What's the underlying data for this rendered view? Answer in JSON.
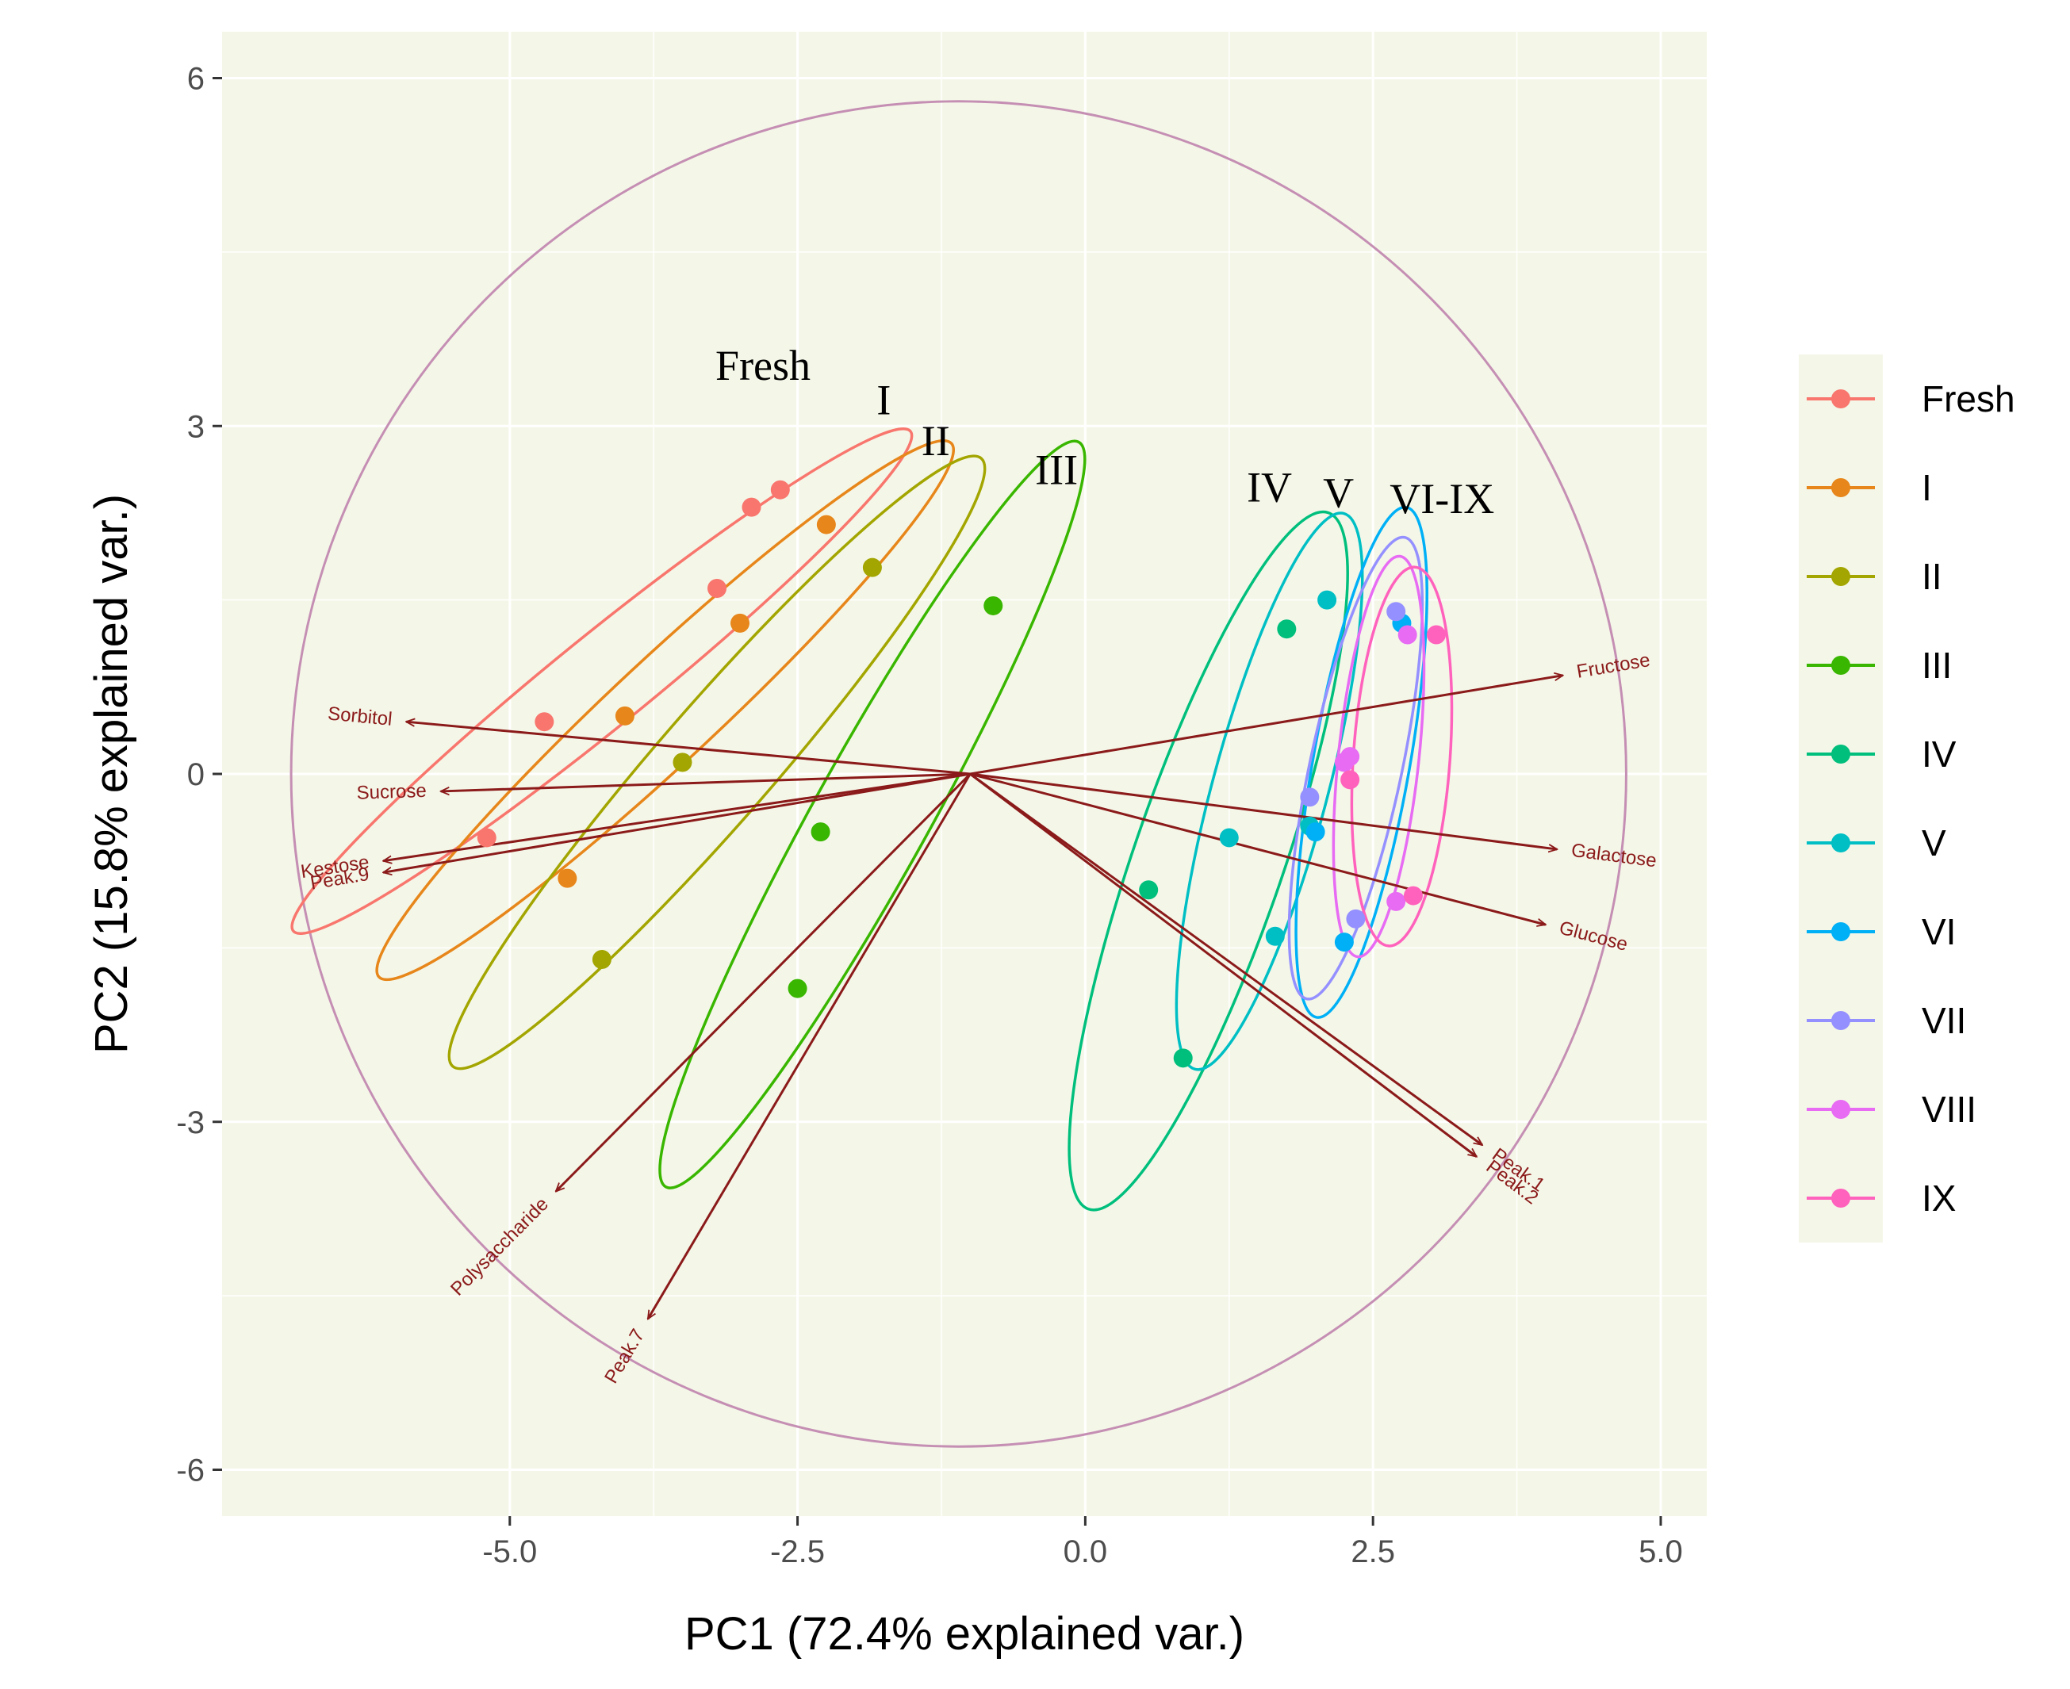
{
  "chart_data": {
    "type": "scatter",
    "title": "",
    "xlabel": "PC1 (72.4% explained var.)",
    "ylabel": "PC2 (15.8% explained var.)",
    "xlim": [
      -7.5,
      5.4
    ],
    "ylim": [
      -6.4,
      6.4
    ],
    "xticks": [
      -5.0,
      -2.5,
      0.0,
      2.5,
      5.0
    ],
    "xtick_labels": [
      "-5.0",
      "-2.5",
      "0.0",
      "2.5",
      "5.0"
    ],
    "yticks": [
      -6,
      -3,
      0,
      3,
      6
    ],
    "ytick_labels": [
      "-6",
      "-3",
      "0",
      "3",
      "6"
    ],
    "grid": true,
    "panel_color": "#f4f7e8",
    "legend_position": "right",
    "origin": [
      -1.0,
      0.0
    ],
    "circle": {
      "center": [
        -1.1,
        0.0
      ],
      "radius": 5.8,
      "color": "#c58fb4"
    },
    "series": [
      {
        "name": "Fresh",
        "color": "#f8766d",
        "points": [
          [
            -2.65,
            2.45
          ],
          [
            -4.7,
            0.45
          ],
          [
            -5.2,
            -0.55
          ],
          [
            -3.2,
            1.6
          ],
          [
            -2.9,
            2.3
          ]
        ],
        "ellipse": {
          "cx": -4.2,
          "cy": 0.8,
          "rx": 3.45,
          "ry": 0.4,
          "angle": 39
        }
      },
      {
        "name": "I",
        "color": "#e7861a",
        "points": [
          [
            -2.25,
            2.15
          ],
          [
            -4.0,
            0.5
          ],
          [
            -4.5,
            -0.9
          ],
          [
            -3.0,
            1.3
          ]
        ],
        "ellipse": {
          "cx": -3.65,
          "cy": 0.55,
          "rx": 3.4,
          "ry": 0.45,
          "angle": 43
        }
      },
      {
        "name": "II",
        "color": "#a3a500",
        "points": [
          [
            -1.85,
            1.78
          ],
          [
            -3.5,
            0.1
          ],
          [
            -4.2,
            -1.6
          ]
        ],
        "ellipse": {
          "cx": -3.2,
          "cy": 0.1,
          "rx": 3.5,
          "ry": 0.5,
          "angle": 49
        }
      },
      {
        "name": "III",
        "color": "#39b600",
        "points": [
          [
            -0.8,
            1.45
          ],
          [
            -2.3,
            -0.5
          ],
          [
            -2.5,
            -1.85
          ]
        ],
        "ellipse": {
          "cx": -1.85,
          "cy": -0.35,
          "rx": 3.7,
          "ry": 0.5,
          "angle": 61
        }
      },
      {
        "name": "IV",
        "color": "#00bf7d",
        "points": [
          [
            1.75,
            1.25
          ],
          [
            0.55,
            -1.0
          ],
          [
            0.85,
            -2.45
          ]
        ],
        "ellipse": {
          "cx": 1.07,
          "cy": -0.75,
          "rx": 3.2,
          "ry": 0.65,
          "angle": 71
        }
      },
      {
        "name": "V",
        "color": "#00bfc4",
        "points": [
          [
            2.1,
            1.5
          ],
          [
            1.25,
            -0.55
          ],
          [
            1.95,
            -0.45
          ],
          [
            1.65,
            -1.4
          ]
        ],
        "ellipse": {
          "cx": 1.6,
          "cy": -0.15,
          "rx": 2.5,
          "ry": 0.5,
          "angle": 75
        }
      },
      {
        "name": "VI",
        "color": "#00b0f6",
        "points": [
          [
            2.75,
            1.3
          ],
          [
            2.25,
            -1.45
          ],
          [
            2.0,
            -0.5
          ]
        ],
        "ellipse": {
          "cx": 2.4,
          "cy": 0.1,
          "rx": 2.25,
          "ry": 0.42,
          "angle": 80
        }
      },
      {
        "name": "VII",
        "color": "#9590ff",
        "points": [
          [
            2.7,
            1.4
          ],
          [
            1.95,
            -0.2
          ],
          [
            2.35,
            -1.25
          ]
        ],
        "ellipse": {
          "cx": 2.35,
          "cy": 0.05,
          "rx": 2.05,
          "ry": 0.4,
          "angle": 78
        }
      },
      {
        "name": "VIII",
        "color": "#e76bf3",
        "points": [
          [
            2.8,
            1.2
          ],
          [
            2.25,
            0.1
          ],
          [
            2.7,
            -1.1
          ],
          [
            2.3,
            0.15
          ]
        ],
        "ellipse": {
          "cx": 2.55,
          "cy": 0.15,
          "rx": 1.75,
          "ry": 0.35,
          "angle": 84
        }
      },
      {
        "name": "IX",
        "color": "#ff62bc",
        "points": [
          [
            3.05,
            1.2
          ],
          [
            2.85,
            -1.05
          ],
          [
            2.3,
            -0.05
          ]
        ],
        "ellipse": {
          "cx": 2.75,
          "cy": 0.15,
          "rx": 1.65,
          "ry": 0.42,
          "angle": 86
        }
      }
    ],
    "loadings": [
      {
        "name": "Sorbitol",
        "x": -5.9,
        "y": 0.45
      },
      {
        "name": "Sucrose",
        "x": -5.6,
        "y": -0.15
      },
      {
        "name": "Kestose",
        "x": -6.1,
        "y": -0.75
      },
      {
        "name": "Peak.9",
        "x": -6.1,
        "y": -0.85
      },
      {
        "name": "Fructose",
        "x": 4.15,
        "y": 0.85
      },
      {
        "name": "Galactose",
        "x": 4.1,
        "y": -0.65
      },
      {
        "name": "Glucose",
        "x": 4.0,
        "y": -1.3
      },
      {
        "name": "Peak.1",
        "x": 3.45,
        "y": -3.2
      },
      {
        "name": "Peak.2",
        "x": 3.4,
        "y": -3.3
      },
      {
        "name": "Polysaccharide",
        "x": -4.6,
        "y": -3.6
      },
      {
        "name": "Peak.7",
        "x": -3.8,
        "y": -4.7
      }
    ],
    "annotations": [
      {
        "text": "Fresh",
        "x": -2.8,
        "y": 3.4
      },
      {
        "text": "I",
        "x": -1.75,
        "y": 3.1
      },
      {
        "text": "II",
        "x": -1.3,
        "y": 2.75
      },
      {
        "text": "III",
        "x": -0.25,
        "y": 2.5
      },
      {
        "text": "IV",
        "x": 1.6,
        "y": 2.35
      },
      {
        "text": "V",
        "x": 2.2,
        "y": 2.3
      },
      {
        "text": "VI-IX",
        "x": 3.1,
        "y": 2.25
      }
    ]
  }
}
